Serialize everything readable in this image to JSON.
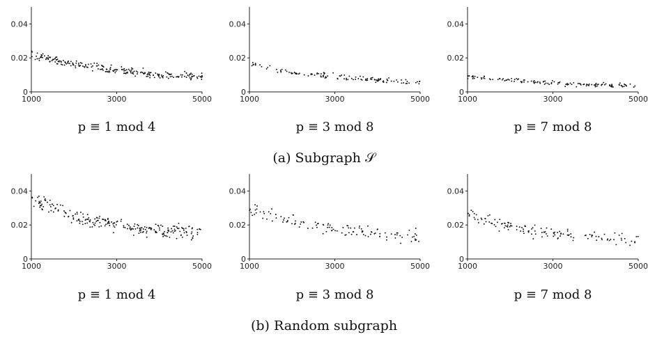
{
  "figure": {
    "row_captions": [
      "(a) Subgraph 𝒮",
      "(b) Random subgraph"
    ]
  },
  "chart_data": [
    {
      "type": "scatter",
      "row": 0,
      "col": 0,
      "title": "p ≡ 1 mod 4",
      "xlim": [
        1000,
        5000
      ],
      "ylim": [
        0,
        0.05
      ],
      "xticks": [
        1000,
        3000,
        5000
      ],
      "yticks": [
        0,
        0.02,
        0.04
      ],
      "ytick_labels": [
        "0",
        "0.02",
        "0.04"
      ],
      "trend": [
        [
          1000,
          0.022
        ],
        [
          2000,
          0.016
        ],
        [
          3000,
          0.013
        ],
        [
          4000,
          0.01
        ],
        [
          5000,
          0.009
        ]
      ],
      "spread": 0.0035,
      "n": 240
    },
    {
      "type": "scatter",
      "row": 0,
      "col": 1,
      "title": "p ≡ 3 mod 8",
      "xlim": [
        1000,
        5000
      ],
      "ylim": [
        0,
        0.05
      ],
      "xticks": [
        1000,
        3000,
        5000
      ],
      "yticks": [
        0,
        0.02,
        0.04
      ],
      "ytick_labels": [
        "0",
        "0.02",
        "0.04"
      ],
      "trend": [
        [
          1000,
          0.017
        ],
        [
          2000,
          0.011
        ],
        [
          3000,
          0.009
        ],
        [
          4000,
          0.007
        ],
        [
          5000,
          0.005
        ]
      ],
      "spread": 0.0025,
      "n": 120
    },
    {
      "type": "scatter",
      "row": 0,
      "col": 2,
      "title": "p ≡ 7 mod 8",
      "xlim": [
        1000,
        5000
      ],
      "ylim": [
        0,
        0.05
      ],
      "xticks": [
        1000,
        3000,
        5000
      ],
      "yticks": [
        0,
        0.02,
        0.04
      ],
      "ytick_labels": [
        "0",
        "0.02",
        "0.04"
      ],
      "trend": [
        [
          1000,
          0.009
        ],
        [
          2000,
          0.007
        ],
        [
          3000,
          0.005
        ],
        [
          4000,
          0.004
        ],
        [
          5000,
          0.004
        ]
      ],
      "spread": 0.0018,
      "n": 130
    },
    {
      "type": "scatter",
      "row": 1,
      "col": 0,
      "title": "p ≡ 1 mod 4",
      "xlim": [
        1000,
        5000
      ],
      "ylim": [
        0,
        0.05
      ],
      "xticks": [
        1000,
        3000,
        5000
      ],
      "yticks": [
        0,
        0.02,
        0.04
      ],
      "ytick_labels": [
        "0",
        "0.02",
        "0.04"
      ],
      "trend": [
        [
          1000,
          0.035
        ],
        [
          2000,
          0.025
        ],
        [
          3000,
          0.02
        ],
        [
          4000,
          0.016
        ],
        [
          5000,
          0.015
        ]
      ],
      "spread": 0.006,
      "n": 240
    },
    {
      "type": "scatter",
      "row": 1,
      "col": 1,
      "title": "p ≡ 3 mod 8",
      "xlim": [
        1000,
        5000
      ],
      "ylim": [
        0,
        0.05
      ],
      "xticks": [
        1000,
        3000,
        5000
      ],
      "yticks": [
        0,
        0.02,
        0.04
      ],
      "ytick_labels": [
        "0",
        "0.02",
        "0.04"
      ],
      "trend": [
        [
          1000,
          0.03
        ],
        [
          2000,
          0.022
        ],
        [
          3000,
          0.018
        ],
        [
          4000,
          0.015
        ],
        [
          5000,
          0.013
        ]
      ],
      "spread": 0.006,
      "n": 120
    },
    {
      "type": "scatter",
      "row": 1,
      "col": 2,
      "title": "p ≡ 7 mod 8",
      "xlim": [
        1000,
        5000
      ],
      "ylim": [
        0,
        0.05
      ],
      "xticks": [
        1000,
        3000,
        5000
      ],
      "yticks": [
        0,
        0.02,
        0.04
      ],
      "ytick_labels": [
        "0",
        "0.02",
        "0.04"
      ],
      "trend": [
        [
          1000,
          0.027
        ],
        [
          2000,
          0.019
        ],
        [
          3000,
          0.015
        ],
        [
          4000,
          0.013
        ],
        [
          5000,
          0.011
        ]
      ],
      "spread": 0.006,
      "n": 130
    }
  ]
}
